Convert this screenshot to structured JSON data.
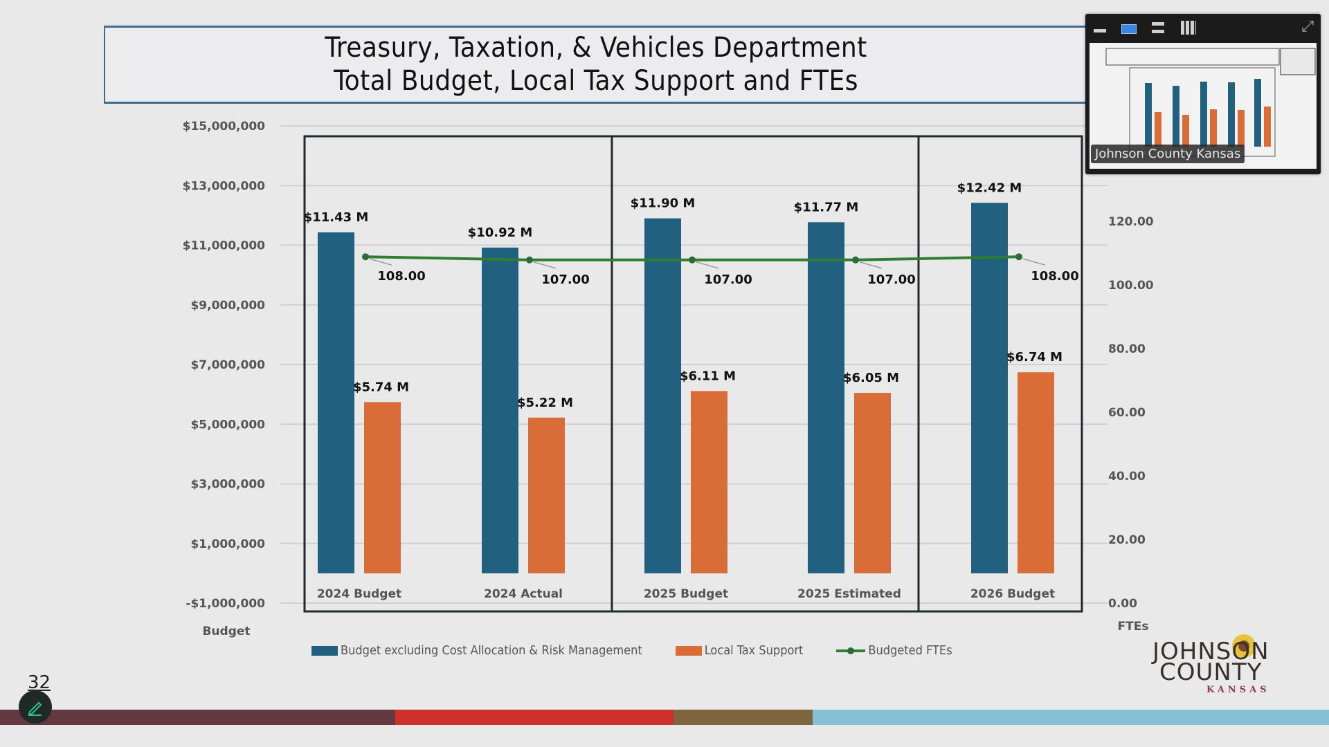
{
  "slide": {
    "title_line1": "Treasury, Taxation, & Vehicles Department",
    "title_line2": "Total Budget, Local Tax Support and FTEs",
    "page_number": "32"
  },
  "thumbnail": {
    "caption": "Johnson County Kansas",
    "toolbar_icons": [
      "minimize-icon",
      "single-view-icon",
      "stacked-view-icon",
      "grid-view-icon",
      "expand-icon"
    ]
  },
  "logo": {
    "line1": "JOHNSON",
    "line2": "COUNTY",
    "line3": "KANSAS"
  },
  "colors": {
    "budget": "#22607f",
    "tax": "#d96d38",
    "fte": "#2e7d32",
    "strip": [
      "#633840",
      "#d0302c",
      "#7e6540",
      "#86c0d4"
    ]
  },
  "chart_data": {
    "type": "bar",
    "title": "Treasury, Taxation, & Vehicles Department Total Budget, Local Tax Support and FTEs",
    "categories": [
      "2024 Budget",
      "2024 Actual",
      "2025 Budget",
      "2025 Estimated",
      "2026 Budget"
    ],
    "series": [
      {
        "name": "Budget excluding Cost Allocation & Risk Management",
        "type": "bar",
        "axis": "left",
        "values": [
          11430000,
          10920000,
          11900000,
          11770000,
          12420000
        ],
        "labels": [
          "$11.43 M",
          "$10.92 M",
          "$11.90 M",
          "$11.77 M",
          "$12.42 M"
        ]
      },
      {
        "name": "Local Tax Support",
        "type": "bar",
        "axis": "left",
        "values": [
          5740000,
          5220000,
          6110000,
          6050000,
          6740000
        ],
        "labels": [
          "$5.74 M",
          "$5.22 M",
          "$6.11 M",
          "$6.05 M",
          "$6.74 M"
        ]
      },
      {
        "name": "Budgeted FTEs",
        "type": "line",
        "axis": "right",
        "values": [
          108,
          107,
          107,
          107,
          108
        ],
        "labels": [
          "108.00",
          "107.00",
          "107.00",
          "107.00",
          "108.00"
        ]
      }
    ],
    "ylabel": "Budget",
    "y2label": "FTEs",
    "ylim": [
      -1000000,
      15000000
    ],
    "y2lim": [
      0,
      140
    ],
    "yticks": [
      15000000,
      13000000,
      11000000,
      9000000,
      7000000,
      5000000,
      3000000,
      1000000,
      -1000000
    ],
    "ytick_labels": [
      "$15,000,000",
      "$13,000,000",
      "$11,000,000",
      "$9,000,000",
      "$7,000,000",
      "$5,000,000",
      "$3,000,000",
      "$1,000,000",
      "-$1,000,000"
    ],
    "y2ticks": [
      120,
      100,
      80,
      60,
      40,
      20,
      0
    ],
    "y2tick_labels": [
      "120.00",
      "100.00",
      "80.00",
      "60.00",
      "40.00",
      "20.00",
      "0.00"
    ],
    "panel_groups": [
      [
        "2024 Budget",
        "2024 Actual"
      ],
      [
        "2025 Budget",
        "2025 Estimated"
      ],
      [
        "2026 Budget"
      ]
    ],
    "grid": true,
    "legend_position": "bottom"
  }
}
